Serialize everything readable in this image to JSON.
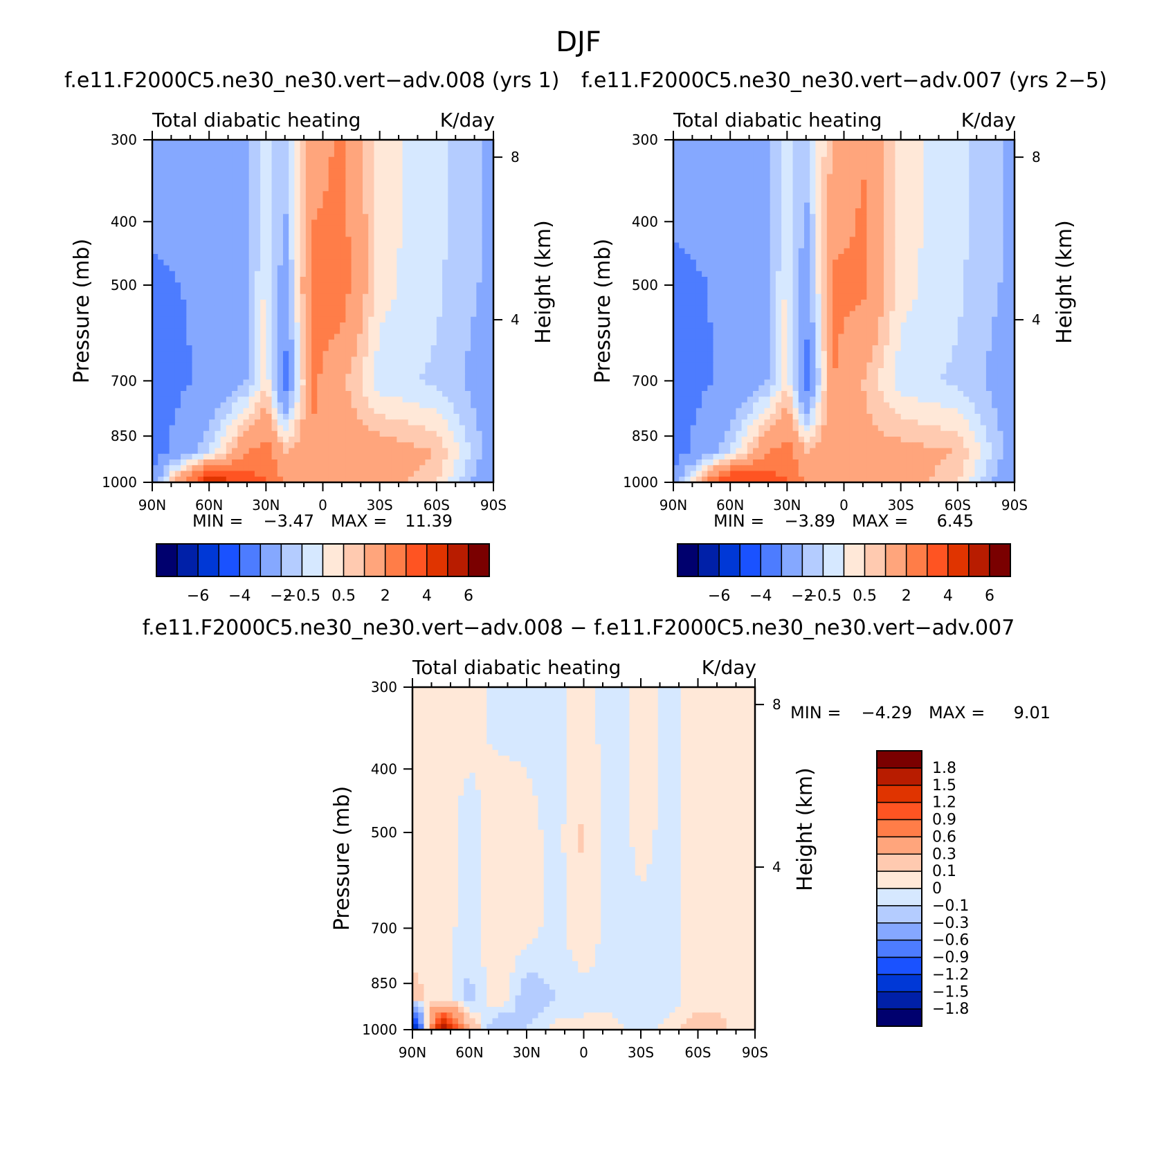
{
  "figure_title": "DJF",
  "colors": {
    "full": [
      "#00006e",
      "#0020a8",
      "#0038d6",
      "#1a52ff",
      "#4d7cff",
      "#85a8ff",
      "#b4ccff",
      "#d6e8ff",
      "#ffe8d8",
      "#ffcab0",
      "#ffa57c",
      "#ff7d48",
      "#ff5422",
      "#e03400",
      "#b81c00",
      "#7a0000"
    ],
    "diff_rev": [
      "#7a0000",
      "#b81c00",
      "#e03400",
      "#ff5422",
      "#ff7d48",
      "#ffa57c",
      "#ffcab0",
      "#ffe8d8",
      "#d6e8ff",
      "#b4ccff",
      "#85a8ff",
      "#4d7cff",
      "#1a52ff",
      "#0038d6",
      "#0020a8",
      "#00006e"
    ]
  },
  "panels": [
    {
      "title": "f.e11.F2000C5.ne30_ne30.vert−adv.008 (yrs 1)",
      "left_label": "Total diabatic heating",
      "right_label": "K/day",
      "ylabel": "Pressure (mb)",
      "y2label": "Height (km)",
      "minmax": {
        "min_label": "MIN =",
        "min": "−3.47",
        "max_label": "MAX =",
        "max": "11.39"
      },
      "colorbar_labels": [
        "−6",
        "−4",
        "−2",
        "−0.5",
        "0.5",
        "2",
        "4",
        "6"
      ]
    },
    {
      "title": "f.e11.F2000C5.ne30_ne30.vert−adv.007 (yrs 2−5)",
      "left_label": "Total diabatic heating",
      "right_label": "K/day",
      "ylabel": "Pressure (mb)",
      "y2label": "Height (km)",
      "minmax": {
        "min_label": "MIN =",
        "min": "−3.89",
        "max_label": "MAX =",
        "max": "6.45"
      },
      "colorbar_labels": [
        "−6",
        "−4",
        "−2",
        "−0.5",
        "0.5",
        "2",
        "4",
        "6"
      ]
    },
    {
      "title": "f.e11.F2000C5.ne30_ne30.vert−adv.008 − f.e11.F2000C5.ne30_ne30.vert−adv.007",
      "left_label": "Total diabatic heating",
      "right_label": "K/day",
      "ylabel": "Pressure (mb)",
      "y2label": "Height (km)",
      "minmax": {
        "min_label": "MIN =",
        "min": "−4.29",
        "max_label": "MAX =",
        "max": "9.01"
      },
      "colorbar_labels": [
        "1.8",
        "1.5",
        "1.2",
        "0.9",
        "0.6",
        "0.3",
        "0.1",
        "0",
        "−0.1",
        "−0.3",
        "−0.6",
        "−0.9",
        "−1.2",
        "−1.5",
        "−1.8"
      ]
    }
  ],
  "chart_data": [
    {
      "type": "heatmap",
      "title": "f.e11.F2000C5.ne30_ne30.vert−adv.008 (yrs 1)",
      "xlabel": "",
      "ylabel": "Pressure (mb)",
      "y2label": "Height (km)",
      "x_ticks": [
        "90N",
        "60N",
        "30N",
        "0",
        "30S",
        "60S",
        "90S"
      ],
      "y_ticks": [
        "300",
        "400",
        "500",
        "700",
        "850",
        "1000"
      ],
      "y_tick_values": [
        300,
        400,
        500,
        700,
        850,
        1000
      ],
      "y2_ticks": [
        "8",
        "4"
      ],
      "y2_tick_values": [
        8,
        4
      ],
      "xlim": [
        90,
        -90
      ],
      "ylim": [
        1000,
        300
      ],
      "y_scale": "log",
      "levels": [
        -6,
        -5,
        -4,
        -3,
        -2,
        -1,
        -0.5,
        0,
        0.5,
        1,
        2,
        3,
        4,
        5,
        6
      ],
      "min": -3.47,
      "max": 11.39,
      "units": "K/day",
      "lat": [
        90,
        60,
        40,
        30,
        20,
        5,
        -10,
        -30,
        -60,
        -90
      ],
      "p": [
        300,
        500,
        700,
        900,
        1000
      ],
      "values": [
        [
          -1.5,
          -1.5,
          -1.2,
          -0.3,
          -0.8,
          1.5,
          2.2,
          0.2,
          -0.3,
          -1.2
        ],
        [
          -2.2,
          -1.8,
          -1.3,
          0.2,
          -1.5,
          2.5,
          2.5,
          0.2,
          -0.4,
          -1.2
        ],
        [
          -2.5,
          -1.8,
          -1.0,
          0.4,
          -2.5,
          2.2,
          1.2,
          -0.3,
          -0.6,
          -1.5
        ],
        [
          -2.5,
          -0.5,
          2.0,
          2.5,
          1.0,
          1.8,
          1.5,
          1.5,
          1.0,
          -1.5
        ],
        [
          -1.5,
          5.0,
          3.5,
          3.0,
          2.0,
          1.0,
          1.2,
          1.5,
          0.5,
          -2.0
        ]
      ]
    },
    {
      "type": "heatmap",
      "title": "f.e11.F2000C5.ne30_ne30.vert−adv.007 (yrs 2−5)",
      "xlabel": "",
      "ylabel": "Pressure (mb)",
      "y2label": "Height (km)",
      "x_ticks": [
        "90N",
        "60N",
        "30N",
        "0",
        "30S",
        "60S",
        "90S"
      ],
      "y_ticks": [
        "300",
        "400",
        "500",
        "700",
        "850",
        "1000"
      ],
      "y_tick_values": [
        300,
        400,
        500,
        700,
        850,
        1000
      ],
      "y2_ticks": [
        "8",
        "4"
      ],
      "y2_tick_values": [
        8,
        4
      ],
      "xlim": [
        90,
        -90
      ],
      "ylim": [
        1000,
        300
      ],
      "y_scale": "log",
      "levels": [
        -6,
        -5,
        -4,
        -3,
        -2,
        -1,
        -0.5,
        0,
        0.5,
        1,
        2,
        3,
        4,
        5,
        6
      ],
      "min": -3.89,
      "max": 6.45,
      "units": "K/day",
      "lat": [
        90,
        60,
        40,
        30,
        20,
        5,
        -10,
        -30,
        -60,
        -90
      ],
      "p": [
        300,
        500,
        700,
        900,
        1000
      ],
      "values": [
        [
          -1.5,
          -1.5,
          -1.2,
          -0.3,
          -0.8,
          1.2,
          2.0,
          0.2,
          -0.3,
          -1.2
        ],
        [
          -2.3,
          -1.8,
          -1.3,
          0.2,
          -1.6,
          2.2,
          2.2,
          0.2,
          -0.4,
          -1.2
        ],
        [
          -2.5,
          -1.8,
          -1.0,
          0.4,
          -2.6,
          2.0,
          1.0,
          -0.3,
          -0.6,
          -1.5
        ],
        [
          -2.5,
          -0.5,
          2.0,
          2.5,
          1.0,
          1.8,
          1.3,
          1.3,
          1.0,
          -1.5
        ],
        [
          -1.5,
          4.5,
          3.5,
          3.0,
          2.0,
          1.0,
          1.2,
          1.5,
          0.5,
          -2.0
        ]
      ]
    },
    {
      "type": "heatmap",
      "title": "f.e11.F2000C5.ne30_ne30.vert−adv.008 − f.e11.F2000C5.ne30_ne30.vert−adv.007",
      "xlabel": "",
      "ylabel": "Pressure (mb)",
      "y2label": "Height (km)",
      "x_ticks": [
        "90N",
        "60N",
        "30N",
        "0",
        "30S",
        "60S",
        "90S"
      ],
      "y_ticks": [
        "300",
        "400",
        "500",
        "700",
        "850",
        "1000"
      ],
      "y_tick_values": [
        300,
        400,
        500,
        700,
        850,
        1000
      ],
      "y2_ticks": [
        "8",
        "4"
      ],
      "y2_tick_values": [
        8,
        4
      ],
      "xlim": [
        90,
        -90
      ],
      "ylim": [
        1000,
        300
      ],
      "y_scale": "log",
      "levels": [
        -1.8,
        -1.5,
        -1.2,
        -0.9,
        -0.6,
        -0.3,
        -0.1,
        0,
        0.1,
        0.3,
        0.6,
        0.9,
        1.2,
        1.5,
        1.8
      ],
      "min": -4.29,
      "max": 9.01,
      "units": "K/day",
      "lat": [
        90,
        75,
        60,
        45,
        30,
        15,
        0,
        -15,
        -30,
        -45,
        -60,
        -75,
        -90
      ],
      "p": [
        300,
        500,
        700,
        900,
        1000
      ],
      "values": [
        [
          0.05,
          0.05,
          0.05,
          -0.05,
          -0.05,
          -0.05,
          0.08,
          -0.1,
          0.05,
          -0.05,
          0.05,
          0.05,
          0.05
        ],
        [
          0.05,
          0.05,
          -0.05,
          0.08,
          0.05,
          -0.05,
          0.12,
          -0.08,
          0.05,
          -0.05,
          0.05,
          0.05,
          0.05
        ],
        [
          0.08,
          0.05,
          -0.05,
          0.1,
          0.05,
          -0.05,
          0.1,
          -0.08,
          -0.05,
          -0.05,
          0.05,
          0.05,
          0.08
        ],
        [
          0.12,
          0.08,
          -0.15,
          0.1,
          -0.2,
          -0.1,
          -0.05,
          -0.05,
          -0.08,
          -0.05,
          0.05,
          0.08,
          0.05
        ],
        [
          -1.9,
          1.9,
          0.3,
          -0.3,
          -0.1,
          0.05,
          0.05,
          0.05,
          -0.05,
          0.05,
          0.2,
          0.1,
          0.05
        ]
      ]
    }
  ]
}
